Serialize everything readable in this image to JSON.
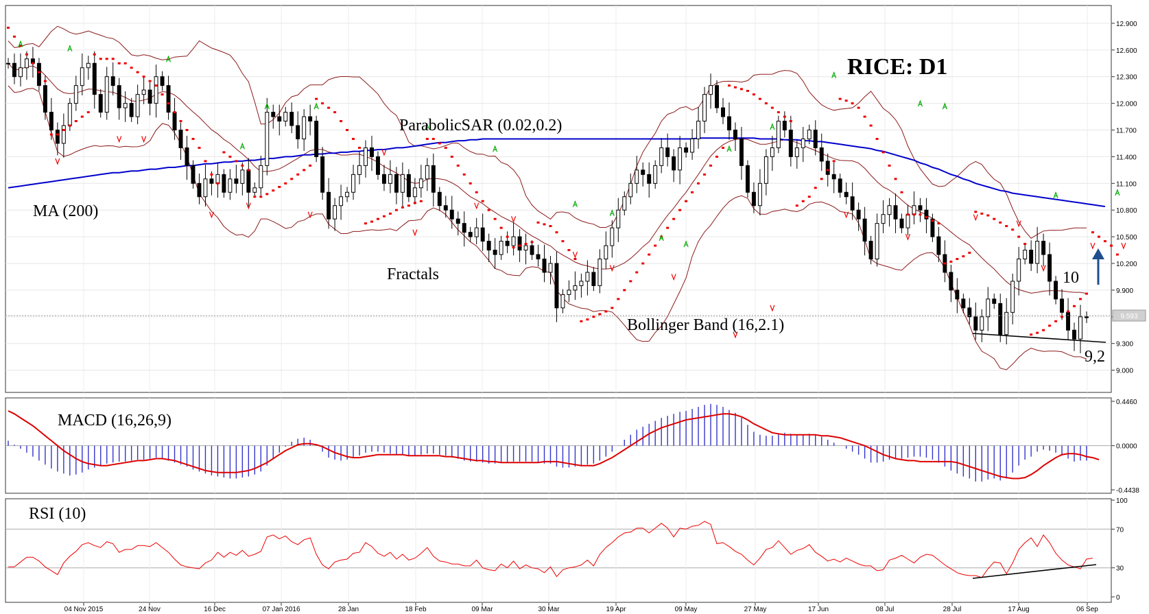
{
  "chart_data": [
    {
      "type": "candlestick",
      "title": "RICE: D1",
      "price_tag": "9.593",
      "y_ticks": [
        "12.900",
        "12.600",
        "12.300",
        "12.000",
        "11.700",
        "11.400",
        "11.100",
        "10.800",
        "10.500",
        "10.200",
        "9.900",
        "9.600",
        "9.300",
        "9.000"
      ],
      "ylim": [
        8.75,
        13.1
      ],
      "x_ticks": [
        "04 Nov 2015",
        "24 Nov",
        "16 Dec",
        "07 Jan 2016",
        "28 Jan",
        "18 Feb",
        "09 Mar",
        "30 Mar",
        "19 Apr",
        "09 May",
        "27 May",
        "17 Jun",
        "08 Jul",
        "28 Jul",
        "17 Aug",
        "06 Sep"
      ],
      "annotations": {
        "ma": "MA (200)",
        "sar": "ParabolicSAR (0.02,0.2)",
        "fractals": "Fractals",
        "bollinger": "Bollinger Band (16,2.1)",
        "target": "10",
        "support": "9,2"
      },
      "colors": {
        "ma": "#0000cc",
        "bollinger": "#8b1a1a",
        "sar": "#ee0000",
        "fractal_up": "#00aa00",
        "fractal_down": "#ee0000"
      },
      "close": [
        12.45,
        12.3,
        12.4,
        12.5,
        12.45,
        12.2,
        11.9,
        11.7,
        11.55,
        11.75,
        12.0,
        12.2,
        12.4,
        12.45,
        12.1,
        11.9,
        12.3,
        12.2,
        11.95,
        12.0,
        11.85,
        12.1,
        12.15,
        12.0,
        12.3,
        12.2,
        11.9,
        11.7,
        11.5,
        11.3,
        11.1,
        10.95,
        11.15,
        11.1,
        11.2,
        11.0,
        11.15,
        11.1,
        11.25,
        11.0,
        11.05,
        11.3,
        11.9,
        11.85,
        11.8,
        11.9,
        11.75,
        11.6,
        11.85,
        11.8,
        11.4,
        11.0,
        10.7,
        10.85,
        10.95,
        11.0,
        11.2,
        11.3,
        11.5,
        11.4,
        11.2,
        11.1,
        11.2,
        11.0,
        11.2,
        10.95,
        11.05,
        11.15,
        11.3,
        11.0,
        10.85,
        10.8,
        10.7,
        10.65,
        10.55,
        10.5,
        10.6,
        10.45,
        10.35,
        10.3,
        10.45,
        10.4,
        10.5,
        10.35,
        10.4,
        10.3,
        10.25,
        10.1,
        10.2,
        9.7,
        9.85,
        9.9,
        9.95,
        10.0,
        10.1,
        9.95,
        10.25,
        10.4,
        10.6,
        10.8,
        10.95,
        11.1,
        11.25,
        11.2,
        11.1,
        11.3,
        11.5,
        11.4,
        11.25,
        11.5,
        11.45,
        11.6,
        11.8,
        12.1,
        12.2,
        11.95,
        11.85,
        11.7,
        11.6,
        11.3,
        11.0,
        10.85,
        11.1,
        11.4,
        11.5,
        11.8,
        11.7,
        11.4,
        11.5,
        11.6,
        11.7,
        11.5,
        11.35,
        11.2,
        11.15,
        11.0,
        10.95,
        10.8,
        10.7,
        10.45,
        10.25,
        10.65,
        10.75,
        10.85,
        10.7,
        10.6,
        10.75,
        10.85,
        10.8,
        10.7,
        10.5,
        10.3,
        10.1,
        9.9,
        9.8,
        9.7,
        9.6,
        9.45,
        9.6,
        9.8,
        9.75,
        9.4,
        9.65,
        10.0,
        10.25,
        10.35,
        10.2,
        10.45,
        10.3,
        10.0,
        9.8,
        9.65,
        9.45,
        9.35,
        9.6,
        9.59
      ],
      "ma200": [
        11.05,
        11.06,
        11.07,
        11.08,
        11.09,
        11.1,
        11.11,
        11.12,
        11.13,
        11.14,
        11.15,
        11.16,
        11.17,
        11.18,
        11.19,
        11.2,
        11.21,
        11.22,
        11.22,
        11.23,
        11.24,
        11.24,
        11.25,
        11.26,
        11.26,
        11.27,
        11.28,
        11.28,
        11.29,
        11.3,
        11.3,
        11.31,
        11.32,
        11.32,
        11.33,
        11.34,
        11.34,
        11.35,
        11.35,
        11.36,
        11.36,
        11.37,
        11.38,
        11.38,
        11.39,
        11.4,
        11.4,
        11.41,
        11.42,
        11.42,
        11.43,
        11.43,
        11.44,
        11.44,
        11.45,
        11.45,
        11.46,
        11.46,
        11.47,
        11.47,
        11.48,
        11.48,
        11.49,
        11.5,
        11.5,
        11.51,
        11.52,
        11.53,
        11.54,
        11.55,
        11.56,
        11.56,
        11.57,
        11.58,
        11.58,
        11.59,
        11.59,
        11.6,
        11.6,
        11.6,
        11.6,
        11.6,
        11.6,
        11.6,
        11.6,
        11.6,
        11.6,
        11.6,
        11.6,
        11.6,
        11.6,
        11.6,
        11.6,
        11.6,
        11.6,
        11.6,
        11.6,
        11.6,
        11.6,
        11.6,
        11.6,
        11.6,
        11.6,
        11.6,
        11.6,
        11.6,
        11.6,
        11.6,
        11.6,
        11.6,
        11.6,
        11.6,
        11.61,
        11.61,
        11.61,
        11.61,
        11.61,
        11.61,
        11.61,
        11.61,
        11.61,
        11.61,
        11.6,
        11.6,
        11.6,
        11.6,
        11.59,
        11.59,
        11.59,
        11.58,
        11.58,
        11.57,
        11.57,
        11.56,
        11.55,
        11.54,
        11.53,
        11.52,
        11.51,
        11.5,
        11.49,
        11.47,
        11.46,
        11.44,
        11.42,
        11.4,
        11.38,
        11.36,
        11.33,
        11.31,
        11.28,
        11.26,
        11.23,
        11.2,
        11.18,
        11.15,
        11.13,
        11.1,
        11.08,
        11.06,
        11.04,
        11.02,
        11.01,
        10.99,
        10.98,
        10.97,
        10.96,
        10.95,
        10.94,
        10.93,
        10.92,
        10.91,
        10.9,
        10.89,
        10.88,
        10.87,
        10.86,
        10.85,
        10.84
      ],
      "sar": [
        12.85,
        12.75,
        12.65,
        12.55,
        12.45,
        12.35,
        12.25,
        11.65,
        11.65,
        11.7,
        11.75,
        11.8,
        11.85,
        11.9,
        12.55,
        12.5,
        12.5,
        12.5,
        12.45,
        12.45,
        12.4,
        12.35,
        12.3,
        12.25,
        12.2,
        12.1,
        12.0,
        11.9,
        11.8,
        11.7,
        11.6,
        11.5,
        11.35,
        11.2,
        11.1,
        11.45,
        11.4,
        11.35,
        11.3,
        11.25,
        10.95,
        10.95,
        10.98,
        11.02,
        11.06,
        11.1,
        11.15,
        11.2,
        11.25,
        11.3,
        12.05,
        12.0,
        11.95,
        11.9,
        11.8,
        11.7,
        11.6,
        11.5,
        10.65,
        10.67,
        10.7,
        10.73,
        10.76,
        10.8,
        10.83,
        10.85,
        10.88,
        10.9,
        11.6,
        11.6,
        11.55,
        11.5,
        11.4,
        11.3,
        11.2,
        11.1,
        11.0,
        10.9,
        10.8,
        10.7,
        10.6,
        10.5,
        10.38,
        10.4,
        10.42,
        10.44,
        10.66,
        10.64,
        10.62,
        10.55,
        10.45,
        10.35,
        10.25,
        9.55,
        9.57,
        9.6,
        9.63,
        9.66,
        9.7,
        9.8,
        9.9,
        10.0,
        10.1,
        10.2,
        10.3,
        10.4,
        10.5,
        10.6,
        10.7,
        10.8,
        10.9,
        11.0,
        11.1,
        11.2,
        11.3,
        11.4,
        11.5,
        12.2,
        12.18,
        12.16,
        12.14,
        12.1,
        12.05,
        12.0,
        11.95,
        11.9,
        11.85,
        11.8,
        10.85,
        10.9,
        10.95,
        11.05,
        11.15,
        11.25,
        11.35,
        12.05,
        12.03,
        12.0,
        11.95,
        11.85,
        11.75,
        11.6,
        11.45,
        11.3,
        11.15,
        11.0,
        10.75,
        10.75,
        10.75,
        10.72,
        10.68,
        10.65,
        10.2,
        10.22,
        10.25,
        10.28,
        10.32,
        10.78,
        10.76,
        10.74,
        10.7,
        10.66,
        10.62,
        10.58,
        10.5,
        10.42,
        9.4,
        9.42,
        9.45,
        9.5,
        9.55,
        9.6,
        9.66,
        9.72,
        9.8,
        9.86,
        10.55,
        10.5,
        10.45,
        10.4,
        10.3
      ],
      "fractals_up": [
        [
          2,
          12.65
        ],
        [
          10,
          12.6
        ],
        [
          26,
          12.48
        ],
        [
          38,
          11.5
        ],
        [
          42,
          11.95
        ],
        [
          50,
          11.95
        ],
        [
          68,
          11.72
        ],
        [
          79,
          11.47
        ],
        [
          92,
          10.85
        ],
        [
          98,
          10.75
        ],
        [
          106,
          10.47
        ],
        [
          110,
          10.4
        ],
        [
          117,
          11.47
        ],
        [
          124,
          11.72
        ],
        [
          134,
          12.3
        ],
        [
          148,
          11.98
        ],
        [
          152,
          11.95
        ],
        [
          170,
          10.95
        ],
        [
          180,
          10.98
        ],
        [
          190,
          9.95
        ],
        [
          197,
          10.7
        ],
        [
          202,
          10.6
        ]
      ],
      "fractals_down": [
        [
          8,
          11.35
        ],
        [
          18,
          11.6
        ],
        [
          22,
          11.6
        ],
        [
          33,
          10.75
        ],
        [
          39,
          10.85
        ],
        [
          49,
          10.75
        ],
        [
          61,
          11.45
        ],
        [
          66,
          10.55
        ],
        [
          76,
          10.85
        ],
        [
          82,
          10.7
        ],
        [
          92,
          10.3
        ],
        [
          98,
          10.15
        ],
        [
          108,
          10.05
        ],
        [
          118,
          9.4
        ],
        [
          124,
          9.7
        ],
        [
          136,
          10.75
        ],
        [
          146,
          10.5
        ],
        [
          157,
          10.72
        ],
        [
          164,
          10.65
        ],
        [
          168,
          10.15
        ],
        [
          176,
          10.4
        ],
        [
          181,
          10.4
        ],
        [
          186,
          9.2
        ],
        [
          193,
          9.2
        ],
        [
          203,
          9.2
        ]
      ]
    },
    {
      "type": "bar+line",
      "title": "MACD (16,26,9)",
      "y_ticks": [
        "0.4460",
        "0.0000",
        "-0.4438"
      ],
      "ylim": [
        -0.4438,
        0.446
      ],
      "colors": {
        "histogram": "#3333cc",
        "signal": "#dd0000"
      },
      "histogram": [
        0.05,
        0.01,
        -0.03,
        -0.07,
        -0.11,
        -0.15,
        -0.19,
        -0.23,
        -0.26,
        -0.28,
        -0.3,
        -0.29,
        -0.27,
        -0.24,
        -0.22,
        -0.2,
        -0.18,
        -0.17,
        -0.16,
        -0.16,
        -0.15,
        -0.14,
        -0.14,
        -0.13,
        -0.12,
        -0.13,
        -0.15,
        -0.17,
        -0.19,
        -0.21,
        -0.24,
        -0.26,
        -0.28,
        -0.3,
        -0.31,
        -0.32,
        -0.33,
        -0.33,
        -0.32,
        -0.31,
        -0.29,
        -0.26,
        -0.2,
        -0.13,
        -0.07,
        -0.01,
        0.04,
        0.07,
        0.08,
        0.06,
        0.01,
        -0.06,
        -0.12,
        -0.14,
        -0.15,
        -0.14,
        -0.12,
        -0.1,
        -0.07,
        -0.06,
        -0.06,
        -0.07,
        -0.08,
        -0.09,
        -0.09,
        -0.1,
        -0.1,
        -0.09,
        -0.08,
        -0.08,
        -0.09,
        -0.1,
        -0.12,
        -0.13,
        -0.15,
        -0.16,
        -0.16,
        -0.17,
        -0.18,
        -0.18,
        -0.17,
        -0.17,
        -0.16,
        -0.16,
        -0.16,
        -0.16,
        -0.17,
        -0.18,
        -0.18,
        -0.21,
        -0.22,
        -0.22,
        -0.21,
        -0.2,
        -0.19,
        -0.18,
        -0.15,
        -0.11,
        -0.06,
        0.0,
        0.06,
        0.11,
        0.16,
        0.19,
        0.22,
        0.25,
        0.28,
        0.3,
        0.32,
        0.34,
        0.35,
        0.37,
        0.39,
        0.41,
        0.42,
        0.41,
        0.39,
        0.36,
        0.33,
        0.28,
        0.21,
        0.14,
        0.11,
        0.1,
        0.1,
        0.12,
        0.13,
        0.12,
        0.11,
        0.11,
        0.12,
        0.11,
        0.09,
        0.06,
        0.03,
        0.0,
        -0.03,
        -0.06,
        -0.09,
        -0.13,
        -0.17,
        -0.17,
        -0.16,
        -0.14,
        -0.13,
        -0.13,
        -0.12,
        -0.11,
        -0.11,
        -0.12,
        -0.14,
        -0.17,
        -0.21,
        -0.25,
        -0.28,
        -0.31,
        -0.33,
        -0.36,
        -0.36,
        -0.34,
        -0.33,
        -0.35,
        -0.33,
        -0.27,
        -0.2,
        -0.14,
        -0.11,
        -0.06,
        -0.04,
        -0.05,
        -0.07,
        -0.1,
        -0.13,
        -0.16,
        -0.15,
        -0.15
      ],
      "signal": [
        0.35,
        0.32,
        0.28,
        0.24,
        0.2,
        0.15,
        0.1,
        0.05,
        0.0,
        -0.05,
        -0.09,
        -0.13,
        -0.16,
        -0.18,
        -0.19,
        -0.2,
        -0.2,
        -0.19,
        -0.18,
        -0.17,
        -0.16,
        -0.15,
        -0.15,
        -0.14,
        -0.13,
        -0.13,
        -0.14,
        -0.15,
        -0.17,
        -0.19,
        -0.21,
        -0.23,
        -0.25,
        -0.26,
        -0.27,
        -0.27,
        -0.27,
        -0.27,
        -0.26,
        -0.25,
        -0.23,
        -0.2,
        -0.17,
        -0.13,
        -0.09,
        -0.05,
        -0.02,
        0.01,
        0.02,
        0.02,
        0.01,
        -0.01,
        -0.04,
        -0.07,
        -0.09,
        -0.11,
        -0.12,
        -0.12,
        -0.11,
        -0.1,
        -0.09,
        -0.09,
        -0.09,
        -0.09,
        -0.09,
        -0.1,
        -0.1,
        -0.1,
        -0.1,
        -0.1,
        -0.1,
        -0.11,
        -0.11,
        -0.12,
        -0.13,
        -0.14,
        -0.15,
        -0.15,
        -0.16,
        -0.16,
        -0.17,
        -0.17,
        -0.17,
        -0.17,
        -0.17,
        -0.17,
        -0.17,
        -0.16,
        -0.16,
        -0.16,
        -0.17,
        -0.18,
        -0.19,
        -0.2,
        -0.2,
        -0.2,
        -0.18,
        -0.15,
        -0.12,
        -0.08,
        -0.04,
        0.0,
        0.04,
        0.08,
        0.12,
        0.15,
        0.18,
        0.2,
        0.22,
        0.24,
        0.26,
        0.27,
        0.28,
        0.29,
        0.3,
        0.31,
        0.32,
        0.32,
        0.31,
        0.29,
        0.26,
        0.22,
        0.19,
        0.16,
        0.13,
        0.12,
        0.11,
        0.11,
        0.11,
        0.11,
        0.11,
        0.11,
        0.1,
        0.1,
        0.09,
        0.08,
        0.06,
        0.04,
        0.02,
        0.0,
        -0.03,
        -0.06,
        -0.09,
        -0.11,
        -0.13,
        -0.14,
        -0.15,
        -0.15,
        -0.16,
        -0.16,
        -0.16,
        -0.16,
        -0.16,
        -0.16,
        -0.17,
        -0.19,
        -0.21,
        -0.23,
        -0.25,
        -0.27,
        -0.29,
        -0.31,
        -0.32,
        -0.33,
        -0.33,
        -0.32,
        -0.29,
        -0.25,
        -0.2,
        -0.16,
        -0.12,
        -0.09,
        -0.08,
        -0.08,
        -0.09,
        -0.11,
        -0.12,
        -0.14
      ]
    },
    {
      "type": "line",
      "title": "RSI (10)",
      "y_ticks": [
        "100",
        "70",
        "30",
        "0"
      ],
      "ylim": [
        0,
        100
      ],
      "colors": {
        "line": "#ee0000"
      },
      "values": [
        31,
        31,
        36,
        41,
        41,
        37,
        31,
        27,
        23,
        35,
        42,
        47,
        54,
        56,
        53,
        51,
        57,
        55,
        46,
        49,
        49,
        53,
        53,
        52,
        56,
        51,
        46,
        39,
        33,
        31,
        30,
        29,
        35,
        38,
        46,
        41,
        46,
        43,
        48,
        42,
        44,
        47,
        62,
        64,
        60,
        63,
        57,
        54,
        59,
        61,
        44,
        33,
        29,
        36,
        38,
        39,
        45,
        46,
        56,
        52,
        45,
        42,
        46,
        39,
        44,
        38,
        40,
        45,
        51,
        42,
        37,
        36,
        34,
        34,
        32,
        32,
        38,
        30,
        28,
        27,
        34,
        30,
        37,
        29,
        33,
        30,
        29,
        25,
        31,
        21,
        28,
        30,
        31,
        33,
        38,
        32,
        44,
        51,
        56,
        62,
        66,
        67,
        71,
        71,
        66,
        71,
        76,
        71,
        62,
        71,
        70,
        73,
        74,
        78,
        75,
        55,
        56,
        52,
        47,
        44,
        38,
        33,
        40,
        49,
        51,
        58,
        51,
        44,
        48,
        50,
        54,
        46,
        42,
        37,
        39,
        36,
        40,
        37,
        34,
        32,
        32,
        27,
        28,
        38,
        40,
        43,
        39,
        35,
        41,
        44,
        43,
        38,
        33,
        29,
        25,
        23,
        22,
        22,
        20,
        29,
        36,
        35,
        24,
        35,
        49,
        56,
        61,
        52,
        64,
        56,
        45,
        38,
        33,
        31,
        29,
        39,
        40
      ]
    }
  ]
}
